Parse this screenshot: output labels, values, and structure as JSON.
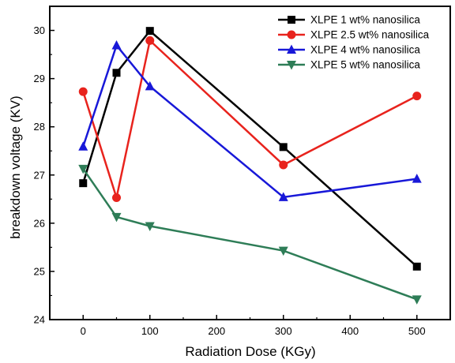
{
  "chart_data": {
    "type": "line",
    "xlabel": "Radiation Dose (KGy)",
    "ylabel": "breakdown voltage (KV)",
    "xlim": [
      -50,
      550
    ],
    "ylim": [
      24,
      30.5
    ],
    "x_ticks": [
      0,
      100,
      200,
      300,
      400,
      500
    ],
    "y_ticks": [
      24,
      25,
      26,
      27,
      28,
      29,
      30
    ],
    "grid": false,
    "legend_position": "top-right",
    "x": [
      0,
      50,
      100,
      300,
      500
    ],
    "series": [
      {
        "name": "XLPE  1 wt% nanosilica",
        "color": "#000000",
        "marker": "square",
        "values": [
          26.83,
          29.12,
          29.99,
          27.58,
          25.1
        ]
      },
      {
        "name": "XLPE  2.5 wt% nanosilica",
        "color": "#e8231d",
        "marker": "circle",
        "values": [
          28.73,
          26.53,
          29.79,
          27.21,
          28.64
        ]
      },
      {
        "name": "XLPE  4 wt% nanosilica",
        "color": "#1818d8",
        "marker": "triangle-up",
        "values": [
          27.59,
          29.69,
          28.84,
          26.54,
          26.92
        ]
      },
      {
        "name": "XLPE  5 wt% nanosilica",
        "color": "#2e7d57",
        "marker": "triangle-down",
        "values": [
          27.13,
          26.13,
          25.94,
          25.43,
          24.42
        ]
      }
    ]
  }
}
